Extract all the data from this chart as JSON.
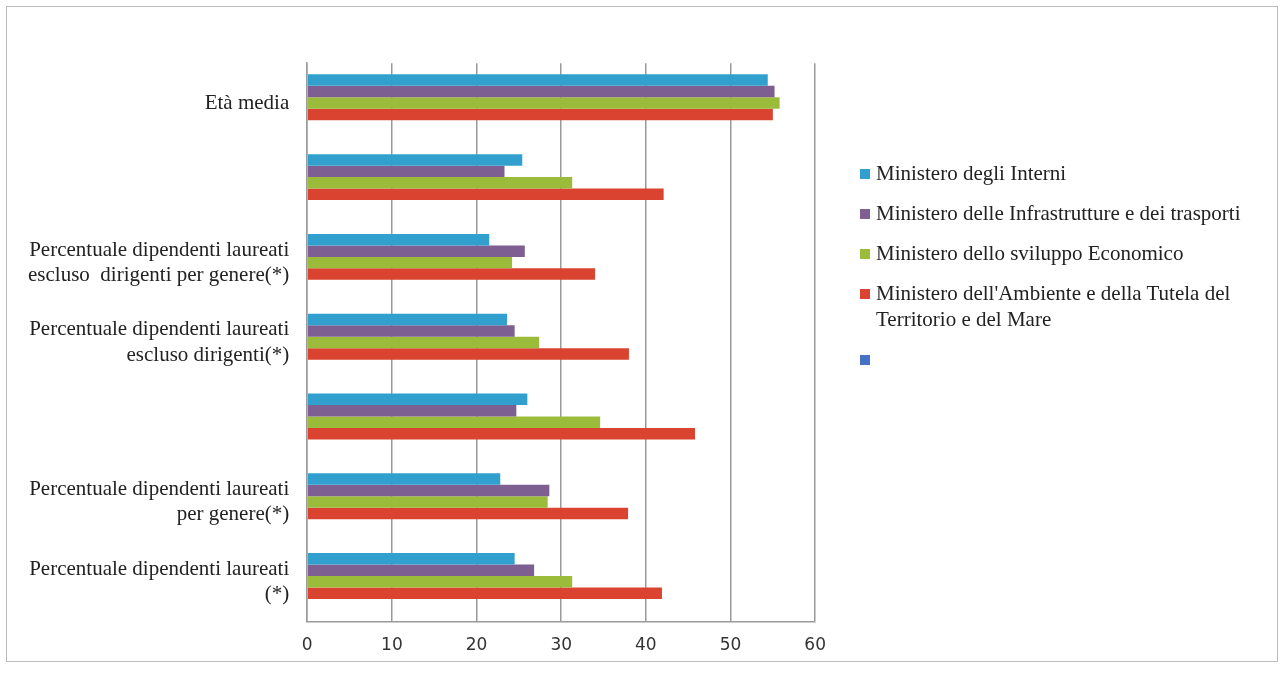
{
  "chart_data": {
    "type": "bar",
    "orientation": "horizontal",
    "legend": "right",
    "grid": "x",
    "categories": [
      "Età media",
      null,
      "Percentuale dipendenti laureati\nescluso  dirigenti per genere(*)",
      "Percentuale dipendenti laureati\nescluso dirigenti(*)",
      null,
      "Percentuale dipendenti laureati\nper genere(*)",
      "Percentuale dipendenti laureati\n(*)"
    ],
    "xlim": [
      0,
      60
    ],
    "xticks": [
      0,
      10,
      20,
      30,
      40,
      50,
      60
    ],
    "series": [
      {
        "name": "Ministero degli Interni",
        "color": "#31a0cf",
        "values": [
          54.4,
          25.4,
          21.5,
          23.6,
          26,
          22.8,
          24.5
        ]
      },
      {
        "name": "Ministero delle Infrastrutture e dei trasporti",
        "color": "#7d5f92",
        "values": [
          55.2,
          23.3,
          25.7,
          24.5,
          24.7,
          28.6,
          26.8
        ]
      },
      {
        "name": "Ministero dello sviluppo Economico",
        "color": "#9bbb3b",
        "values": [
          55.8,
          31.3,
          24.2,
          27.4,
          34.6,
          28.4,
          31.3
        ]
      },
      {
        "name": "Ministero dell'Ambiente e della Tutela del Territorio e del Mare",
        "color": "#d9432f",
        "values": [
          55,
          42.1,
          34,
          38,
          45.8,
          37.9,
          41.9
        ]
      },
      {
        "color": "#4472c4",
        "values": [
          null,
          null,
          null,
          null,
          null,
          null,
          null
        ]
      }
    ]
  }
}
